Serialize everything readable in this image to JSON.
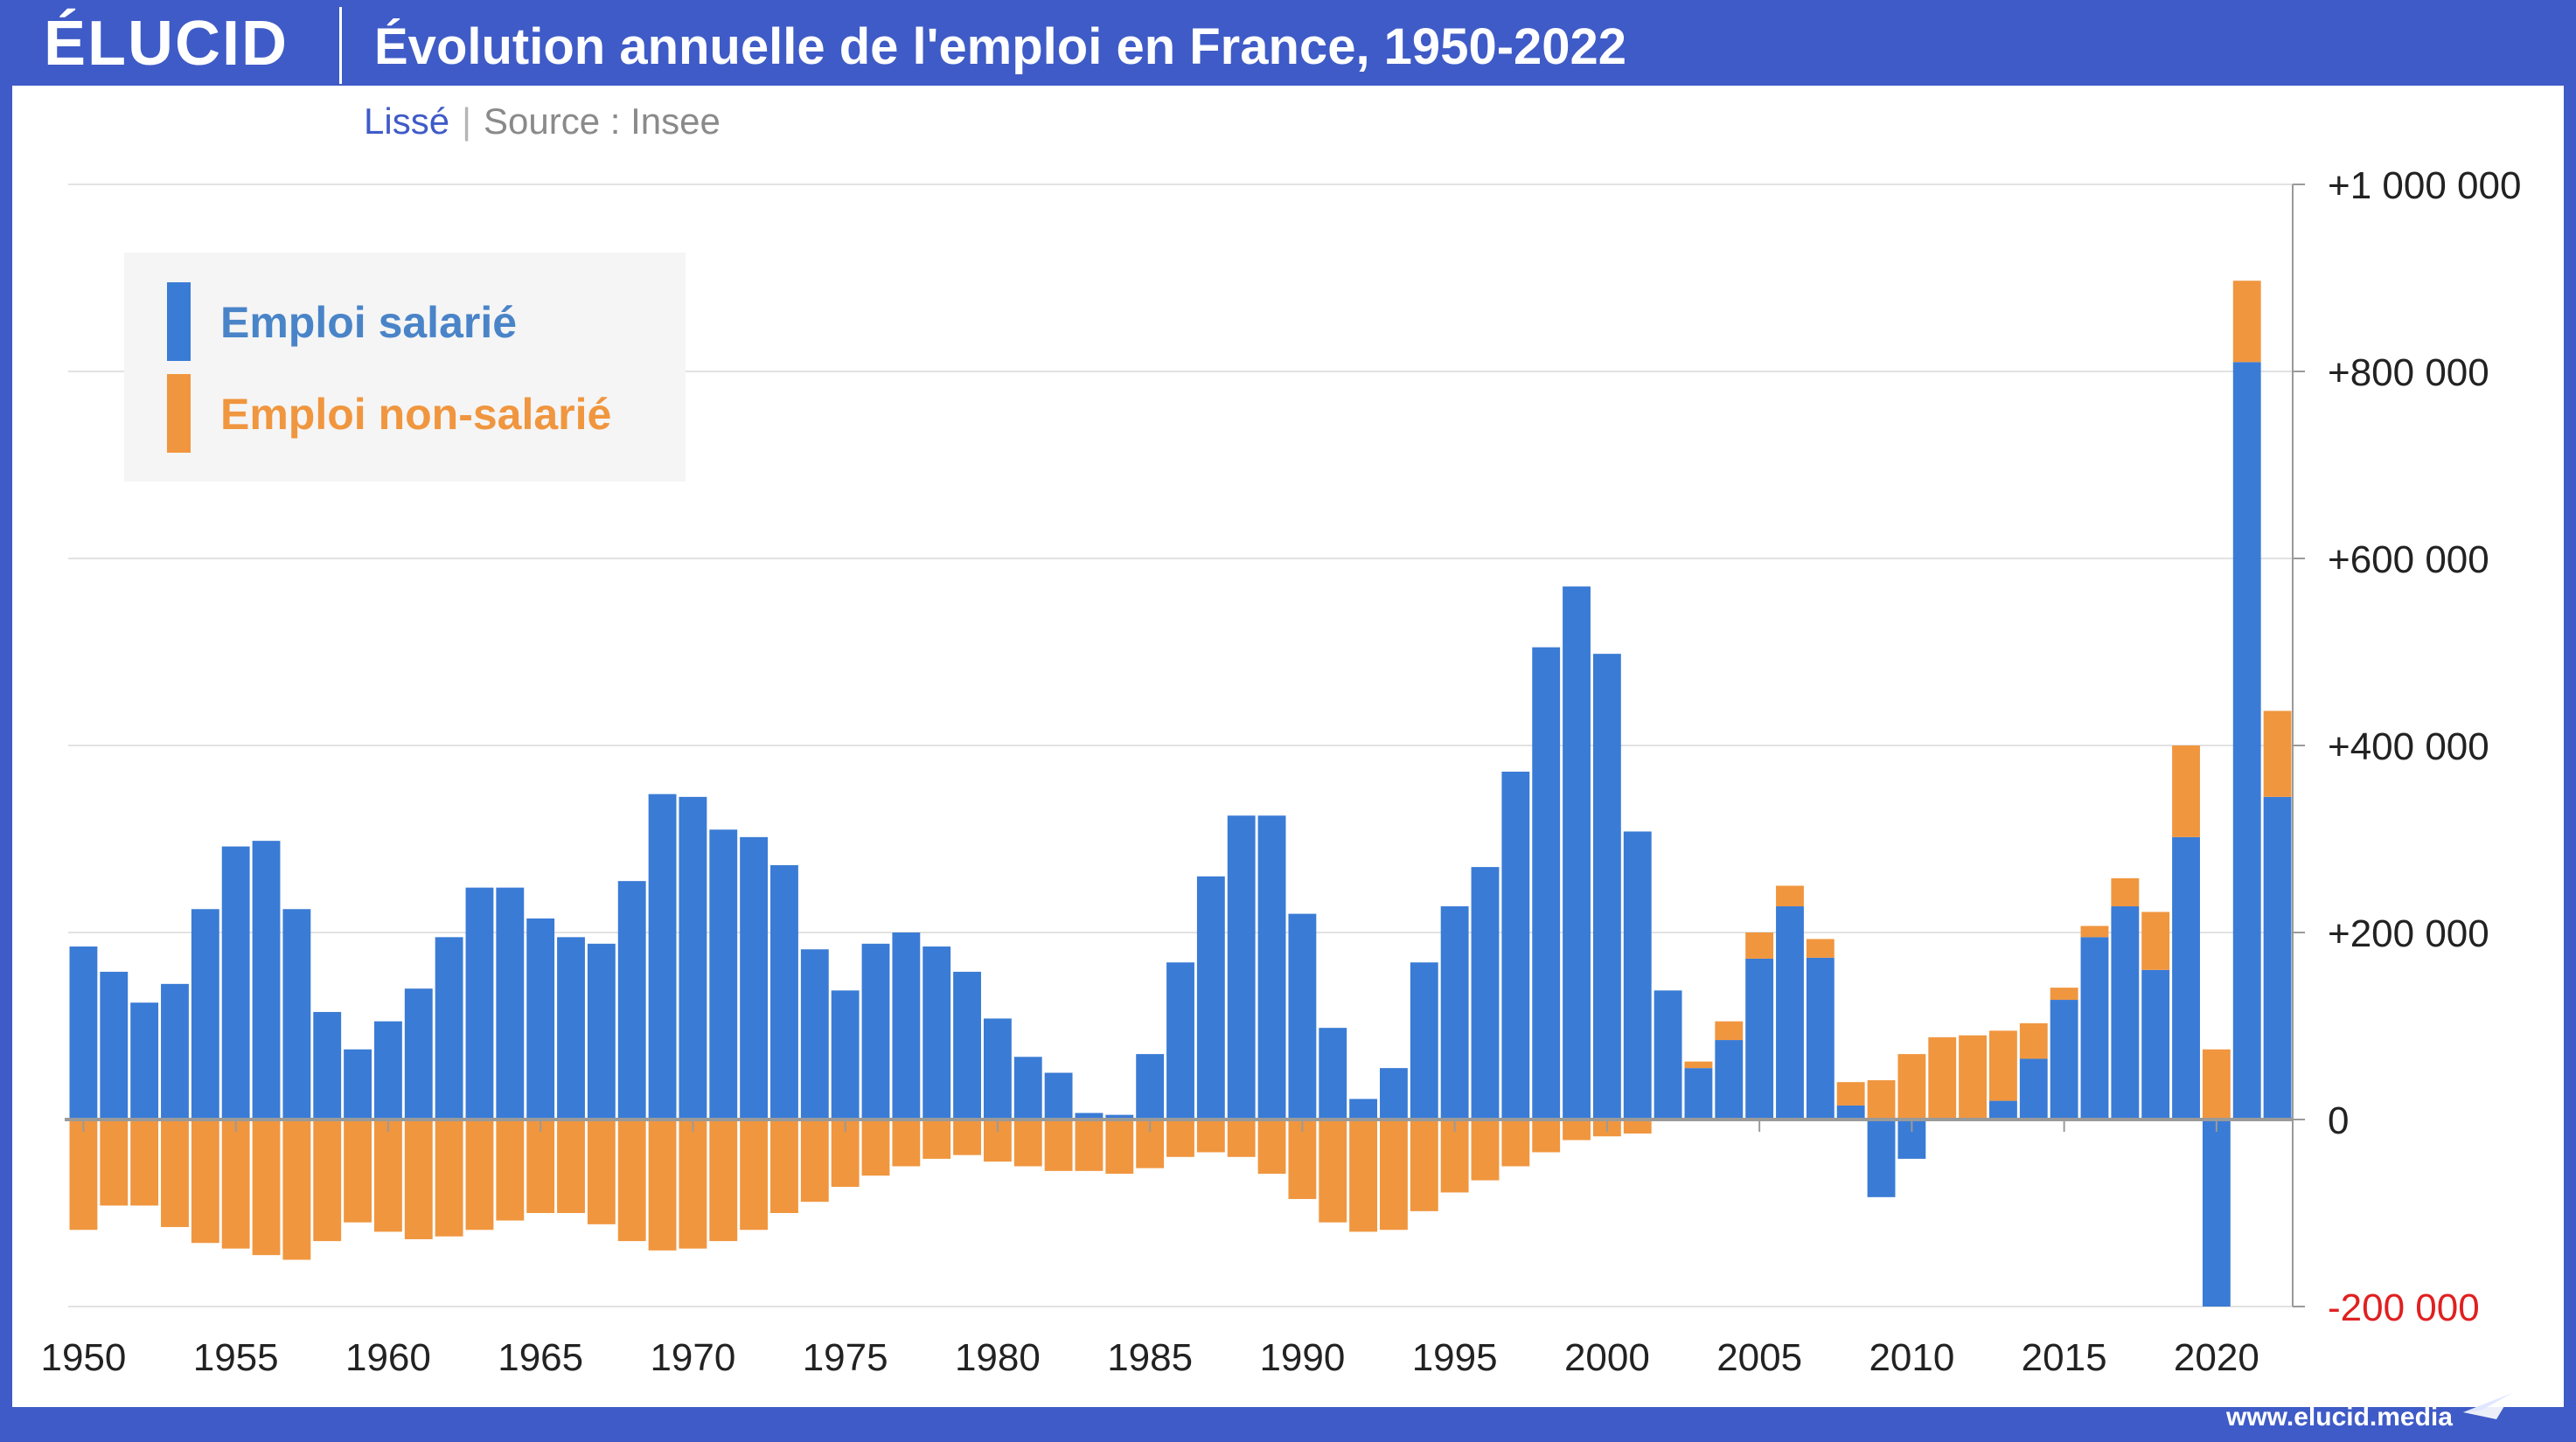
{
  "header": {
    "logo": "ÉLUCID",
    "title": "Évolution annuelle de l'emploi en France, 1950-2022"
  },
  "subtitle": {
    "smoothing": "Lissé",
    "source": "Source : Insee"
  },
  "footer": {
    "url": "www.elucid.media"
  },
  "colors": {
    "salarie": "#3a7bd5",
    "non_salarie": "#f0963f",
    "negative_tick": "#e02020",
    "brand": "#3f5bc7"
  },
  "chart_data": {
    "type": "bar",
    "stacked": true,
    "title": "Évolution annuelle de l'emploi en France, 1950-2022",
    "x": [
      1950,
      1951,
      1952,
      1953,
      1954,
      1955,
      1956,
      1957,
      1958,
      1959,
      1960,
      1961,
      1962,
      1963,
      1964,
      1965,
      1966,
      1967,
      1968,
      1969,
      1970,
      1971,
      1972,
      1973,
      1974,
      1975,
      1976,
      1977,
      1978,
      1979,
      1980,
      1981,
      1982,
      1983,
      1984,
      1985,
      1986,
      1987,
      1988,
      1989,
      1990,
      1991,
      1992,
      1993,
      1994,
      1995,
      1996,
      1997,
      1998,
      1999,
      2000,
      2001,
      2002,
      2003,
      2004,
      2005,
      2006,
      2007,
      2008,
      2009,
      2010,
      2011,
      2012,
      2013,
      2014,
      2015,
      2016,
      2017,
      2018,
      2019,
      2020,
      2021,
      2022
    ],
    "x_tick_labels": [
      "1950",
      "1955",
      "1960",
      "1965",
      "1970",
      "1975",
      "1980",
      "1985",
      "1990",
      "1995",
      "2000",
      "2005",
      "2010",
      "2015",
      "2020"
    ],
    "y_tick_labels": [
      "+1 000 000",
      "+800 000",
      "+600 000",
      "+400 000",
      "+200 000",
      "0",
      "-200 000"
    ],
    "ylim": [
      -200000,
      1000000
    ],
    "y_axis_position": "right",
    "grid": true,
    "legend_position": "top-left",
    "series": [
      {
        "name": "Emploi salarié",
        "color": "#3a7bd5",
        "values": [
          185000,
          158000,
          125000,
          145000,
          225000,
          292000,
          298000,
          225000,
          115000,
          75000,
          105000,
          140000,
          195000,
          248000,
          248000,
          215000,
          195000,
          188000,
          255000,
          348000,
          345000,
          310000,
          302000,
          272000,
          182000,
          138000,
          188000,
          200000,
          185000,
          158000,
          108000,
          67000,
          50000,
          7000,
          5000,
          70000,
          168000,
          260000,
          325000,
          325000,
          220000,
          98000,
          22000,
          55000,
          168000,
          228000,
          270000,
          372000,
          505000,
          570000,
          498000,
          308000,
          138000,
          55000,
          85000,
          172000,
          228000,
          173000,
          15000,
          -83000,
          -42000,
          0,
          0,
          20000,
          65000,
          128000,
          195000,
          228000,
          160000,
          302000,
          -200000,
          810000,
          345000
        ]
      },
      {
        "name": "Emploi non-salarié",
        "color": "#f0963f",
        "values": [
          -118000,
          -92000,
          -92000,
          -115000,
          -132000,
          -138000,
          -145000,
          -150000,
          -130000,
          -110000,
          -120000,
          -128000,
          -125000,
          -118000,
          -108000,
          -100000,
          -100000,
          -112000,
          -130000,
          -140000,
          -138000,
          -130000,
          -118000,
          -100000,
          -88000,
          -72000,
          -60000,
          -50000,
          -42000,
          -38000,
          -45000,
          -50000,
          -55000,
          -55000,
          -58000,
          -52000,
          -40000,
          -35000,
          -40000,
          -58000,
          -85000,
          -110000,
          -120000,
          -118000,
          -98000,
          -78000,
          -65000,
          -50000,
          -35000,
          -22000,
          -18000,
          -15000,
          0,
          7000,
          20000,
          28000,
          22000,
          20000,
          25000,
          42000,
          70000,
          88000,
          90000,
          75000,
          38000,
          13000,
          12000,
          30000,
          62000,
          98000,
          75000,
          87000,
          92000
        ]
      }
    ]
  }
}
